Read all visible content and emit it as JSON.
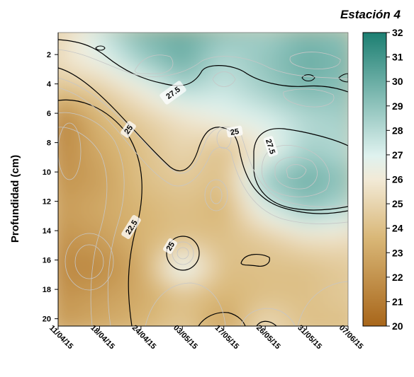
{
  "chart_data": {
    "type": "heatmap",
    "title": "Estación 4",
    "ylabel": "Profundidad (cm)",
    "xlabel": "",
    "x_tick_labels": [
      "11/04/15",
      "18/04/15",
      "24/04/15",
      "03/05/15",
      "17/05/15",
      "26/05/15",
      "31/05/15",
      "07/06/15"
    ],
    "y_ticks": [
      2,
      4,
      6,
      8,
      10,
      12,
      14,
      16,
      18,
      20
    ],
    "ylim": [
      20.5,
      0.5
    ],
    "colorbar": {
      "ticks": [
        20,
        21,
        22,
        23,
        24,
        25,
        26,
        27,
        28,
        29,
        30,
        31,
        32
      ],
      "range": [
        20,
        32
      ],
      "colors": [
        "#a8661a",
        "#d9b777",
        "#f2ead7",
        "#dff2ef",
        "#1c7f72"
      ]
    },
    "contour_labels": [
      "27.5",
      "25",
      "25",
      "27.5",
      "22.5",
      "25"
    ],
    "grid_cols": 8,
    "grid_values": [
      [
        25.0,
        27.5,
        29.5,
        30.0,
        29.0,
        28.5,
        29.5,
        29.0
      ],
      [
        25.5,
        26.5,
        28.5,
        30.0,
        28.0,
        29.0,
        30.0,
        29.5
      ],
      [
        24.0,
        24.5,
        26.0,
        28.0,
        27.5,
        28.5,
        29.5,
        29.0
      ],
      [
        21.0,
        23.5,
        24.5,
        25.5,
        26.5,
        27.0,
        28.0,
        28.5
      ],
      [
        21.5,
        23.0,
        24.0,
        25.0,
        24.0,
        26.0,
        28.5,
        28.0
      ],
      [
        22.0,
        22.5,
        24.0,
        24.5,
        24.0,
        29.0,
        30.0,
        29.0
      ],
      [
        22.5,
        23.0,
        23.5,
        24.0,
        23.5,
        27.0,
        29.0,
        28.0
      ],
      [
        22.0,
        22.5,
        23.5,
        24.0,
        24.0,
        24.5,
        25.5,
        25.5
      ],
      [
        21.5,
        21.5,
        23.0,
        27.5,
        24.0,
        24.0,
        24.0,
        24.5
      ],
      [
        22.0,
        22.5,
        23.0,
        24.0,
        23.5,
        24.0,
        24.0,
        24.5
      ],
      [
        22.5,
        23.0,
        23.5,
        24.5,
        22.5,
        25.5,
        24.0,
        24.0
      ]
    ]
  }
}
